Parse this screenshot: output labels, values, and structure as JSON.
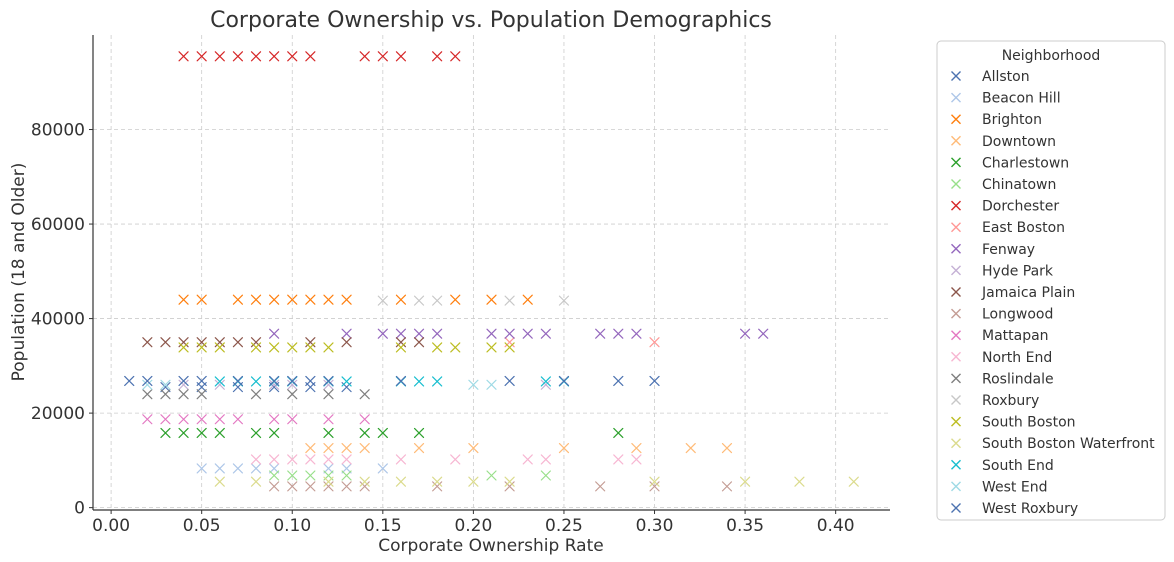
{
  "chart_data": {
    "type": "scatter",
    "title": "Corporate Ownership vs. Population Demographics",
    "xlabel": "Corporate Ownership Rate",
    "ylabel": "Population (18 and Older)",
    "xlim": [
      -0.01,
      0.43
    ],
    "ylim": [
      -500,
      100000
    ],
    "xticks": [
      "0.00",
      "0.05",
      "0.10",
      "0.15",
      "0.20",
      "0.25",
      "0.30",
      "0.35",
      "0.40"
    ],
    "yticks": [
      "0",
      "20000",
      "40000",
      "60000",
      "80000"
    ],
    "grid": true,
    "marker": "x",
    "legend": {
      "title": "Neighborhood",
      "placement": "outside-right"
    },
    "series": [
      {
        "name": "Allston",
        "color": "#4c72b0",
        "population": 25500,
        "x": [
          0.03,
          0.05,
          0.07,
          0.09,
          0.11,
          0.13
        ]
      },
      {
        "name": "Beacon Hill",
        "color": "#aec7e8",
        "population": 8300,
        "x": [
          0.05,
          0.06,
          0.07,
          0.08,
          0.09,
          0.12,
          0.13,
          0.15
        ]
      },
      {
        "name": "Brighton",
        "color": "#ff7f0e",
        "population": 44000,
        "x": [
          0.04,
          0.05,
          0.07,
          0.08,
          0.09,
          0.1,
          0.11,
          0.12,
          0.13,
          0.16,
          0.19,
          0.21,
          0.23
        ]
      },
      {
        "name": "Downtown",
        "color": "#ffbb78",
        "population": 12600,
        "x": [
          0.11,
          0.12,
          0.13,
          0.14,
          0.17,
          0.2,
          0.25,
          0.29,
          0.32,
          0.34
        ]
      },
      {
        "name": "Charlestown",
        "color": "#2ca02c",
        "population": 15800,
        "x": [
          0.03,
          0.04,
          0.05,
          0.06,
          0.08,
          0.09,
          0.12,
          0.14,
          0.15,
          0.17,
          0.28
        ]
      },
      {
        "name": "Chinatown",
        "color": "#98df8a",
        "population": 6800,
        "x": [
          0.09,
          0.1,
          0.11,
          0.12,
          0.13,
          0.21,
          0.24
        ]
      },
      {
        "name": "Dorchester",
        "color": "#d62728",
        "population": 95500,
        "x": [
          0.04,
          0.05,
          0.06,
          0.07,
          0.08,
          0.09,
          0.1,
          0.11,
          0.14,
          0.15,
          0.16,
          0.18,
          0.19
        ]
      },
      {
        "name": "East Boston",
        "color": "#ff9896",
        "population": 35000,
        "x": [
          0.22,
          0.3
        ]
      },
      {
        "name": "Fenway",
        "color": "#9467bd",
        "population": 36800,
        "x": [
          0.09,
          0.13,
          0.15,
          0.16,
          0.17,
          0.18,
          0.21,
          0.22,
          0.23,
          0.24,
          0.27,
          0.28,
          0.29,
          0.35,
          0.36
        ]
      },
      {
        "name": "Hyde Park",
        "color": "#c5b0d5",
        "population": 26000,
        "x": [
          0.04,
          0.06,
          0.09,
          0.1,
          0.12,
          0.24
        ]
      },
      {
        "name": "Jamaica Plain",
        "color": "#8c564b",
        "population": 35000,
        "x": [
          0.02,
          0.03,
          0.04,
          0.05,
          0.06,
          0.07,
          0.08,
          0.11,
          0.13,
          0.16,
          0.17
        ]
      },
      {
        "name": "Longwood",
        "color": "#c49c94",
        "population": 4500,
        "x": [
          0.09,
          0.1,
          0.11,
          0.12,
          0.13,
          0.14,
          0.18,
          0.22,
          0.27,
          0.3,
          0.34
        ]
      },
      {
        "name": "Mattapan",
        "color": "#e377c2",
        "population": 18700,
        "x": [
          0.02,
          0.03,
          0.04,
          0.05,
          0.06,
          0.07,
          0.09,
          0.1,
          0.12,
          0.14
        ]
      },
      {
        "name": "North End",
        "color": "#f7b6d2",
        "population": 10200,
        "x": [
          0.08,
          0.09,
          0.1,
          0.11,
          0.12,
          0.13,
          0.16,
          0.19,
          0.23,
          0.24,
          0.28,
          0.29
        ]
      },
      {
        "name": "Roslindale",
        "color": "#7f7f7f",
        "population": 24000,
        "x": [
          0.02,
          0.03,
          0.04,
          0.05,
          0.08,
          0.1,
          0.12,
          0.14
        ]
      },
      {
        "name": "Roxbury",
        "color": "#c7c7c7",
        "population": 43800,
        "x": [
          0.15,
          0.17,
          0.18,
          0.22,
          0.25
        ]
      },
      {
        "name": "South Boston",
        "color": "#bcbd22",
        "population": 33900,
        "x": [
          0.04,
          0.05,
          0.06,
          0.08,
          0.09,
          0.1,
          0.11,
          0.12,
          0.16,
          0.18,
          0.19,
          0.21,
          0.22
        ]
      },
      {
        "name": "South Boston Waterfront",
        "color": "#dbdb8d",
        "population": 5500,
        "x": [
          0.06,
          0.08,
          0.12,
          0.14,
          0.16,
          0.18,
          0.2,
          0.22,
          0.3,
          0.35,
          0.38,
          0.41
        ]
      },
      {
        "name": "South End",
        "color": "#17becf",
        "population": 26700,
        "x": [
          0.06,
          0.07,
          0.08,
          0.09,
          0.1,
          0.12,
          0.13,
          0.16,
          0.17,
          0.18,
          0.24,
          0.25
        ]
      },
      {
        "name": "West End",
        "color": "#9edae5",
        "population": 26000,
        "x": [
          0.02,
          0.03,
          0.2,
          0.21
        ]
      },
      {
        "name": "West Roxbury",
        "color": "#4c72b0",
        "population": 26800,
        "x": [
          0.01,
          0.02,
          0.04,
          0.05,
          0.07,
          0.09,
          0.1,
          0.11,
          0.12,
          0.16,
          0.22,
          0.25,
          0.28,
          0.3
        ]
      }
    ]
  }
}
